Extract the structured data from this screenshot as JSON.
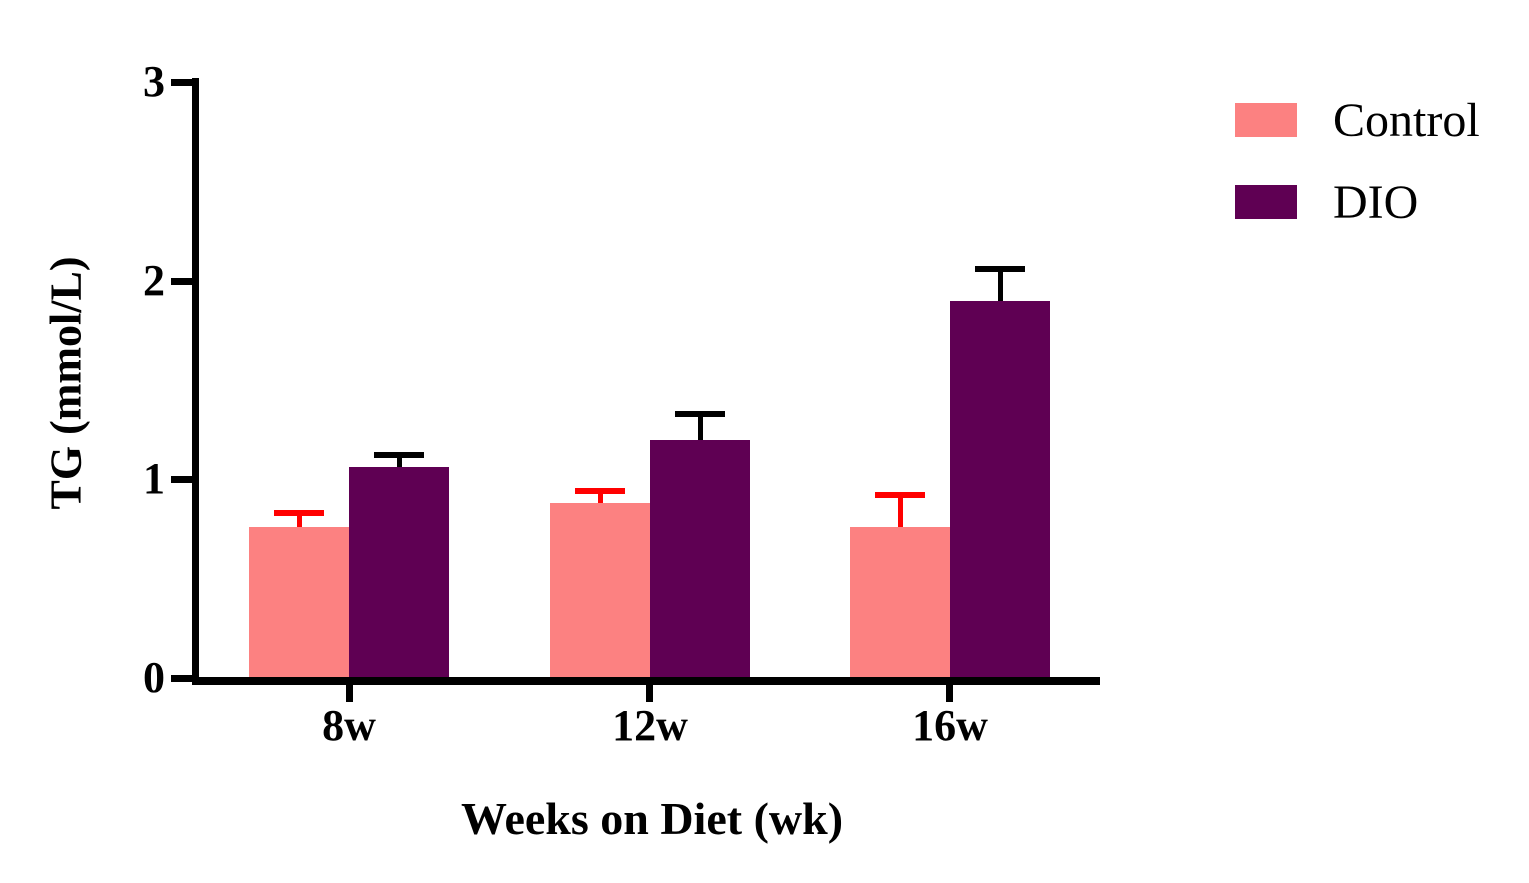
{
  "chart_data": {
    "type": "bar",
    "title": "",
    "xlabel": "Weeks on Diet (wk)",
    "ylabel": "TG (mmol/L)",
    "categories": [
      "8w",
      "12w",
      "16w"
    ],
    "series": [
      {
        "name": "Control",
        "color": "#FC8181",
        "error_color": "#FF0000",
        "values": [
          0.76,
          0.88,
          0.76
        ],
        "sem": [
          0.07,
          0.06,
          0.16
        ]
      },
      {
        "name": "DIO",
        "color": "#5F0053",
        "error_color": "#000000",
        "values": [
          1.06,
          1.2,
          1.9
        ],
        "sem": [
          0.06,
          0.13,
          0.16
        ]
      }
    ],
    "ylim": [
      0,
      3
    ],
    "yticks": [
      0,
      1,
      2,
      3
    ],
    "grid": false,
    "legend_position": "top-right",
    "background": "#FFFFFF",
    "axis_color": "#000000",
    "error_bar_style": "upper-cap"
  }
}
